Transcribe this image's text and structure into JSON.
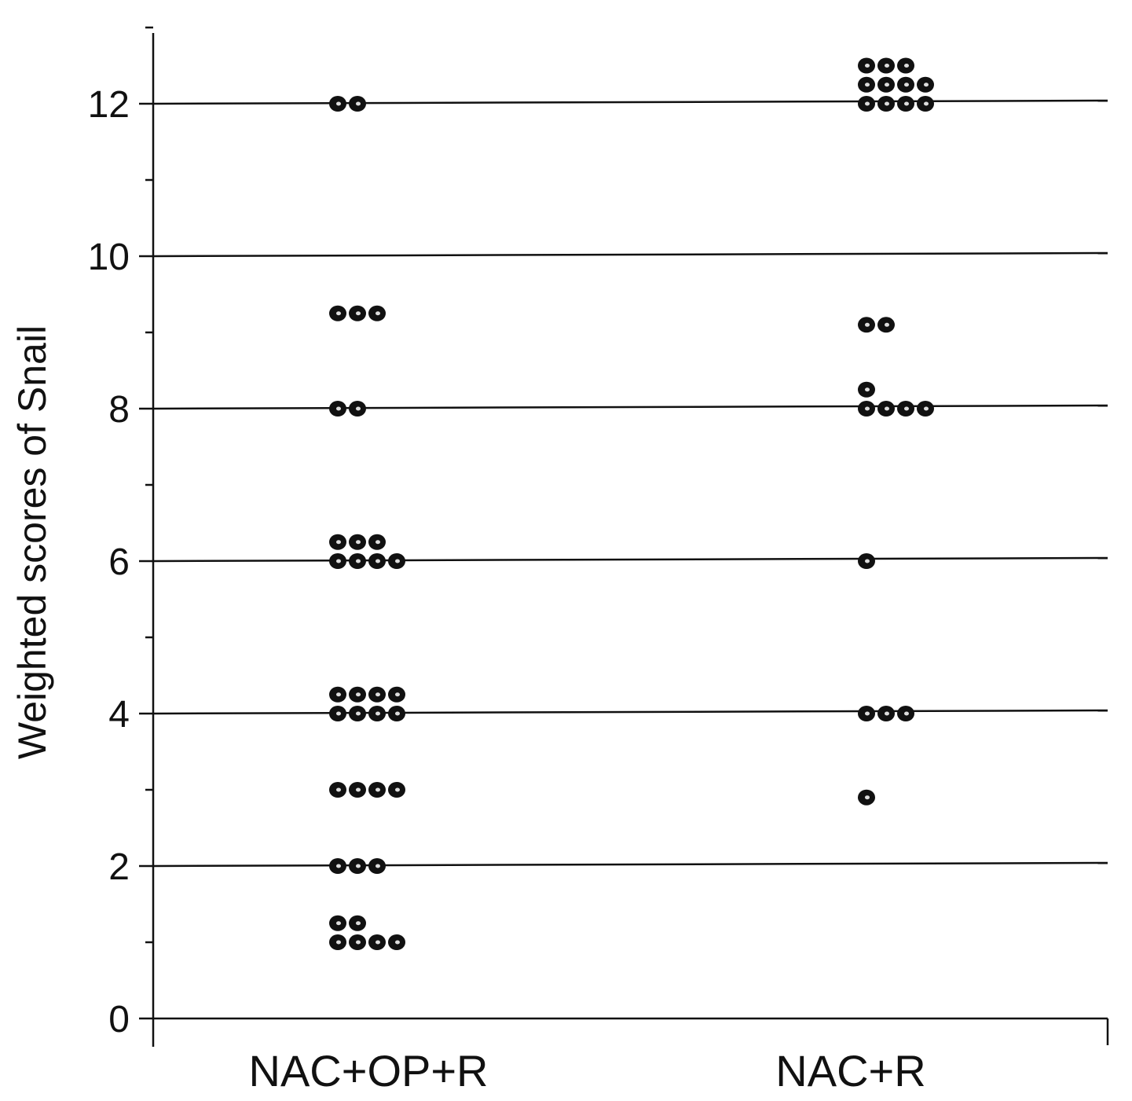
{
  "chart_data": {
    "type": "scatter",
    "title": "",
    "xlabel": "",
    "ylabel": "Weighted scores of Snail",
    "ylim": [
      0,
      13
    ],
    "yticks": [
      "0",
      "2",
      "4",
      "6",
      "8",
      "10",
      "12"
    ],
    "grid": true,
    "categories": [
      "NAC+OP+R",
      "NAC+R"
    ],
    "series": [
      {
        "category": "NAC+OP+R",
        "groups": [
          {
            "y": 12,
            "count": 2
          },
          {
            "y": 9.25,
            "count": 3
          },
          {
            "y": 8,
            "count": 2
          },
          {
            "y": 6.25,
            "count": 3
          },
          {
            "y": 6,
            "count": 4
          },
          {
            "y": 4.25,
            "count": 4
          },
          {
            "y": 4,
            "count": 4
          },
          {
            "y": 3,
            "count": 4
          },
          {
            "y": 2,
            "count": 3
          },
          {
            "y": 1.25,
            "count": 2
          },
          {
            "y": 1,
            "count": 4
          }
        ]
      },
      {
        "category": "NAC+R",
        "groups": [
          {
            "y": 12.5,
            "count": 3
          },
          {
            "y": 12.25,
            "count": 4
          },
          {
            "y": 12,
            "count": 4
          },
          {
            "y": 9.1,
            "count": 2
          },
          {
            "y": 8.25,
            "count": 1
          },
          {
            "y": 8,
            "count": 4
          },
          {
            "y": 6,
            "count": 1
          },
          {
            "y": 4,
            "count": 3
          },
          {
            "y": 2.9,
            "count": 1
          }
        ]
      }
    ]
  }
}
